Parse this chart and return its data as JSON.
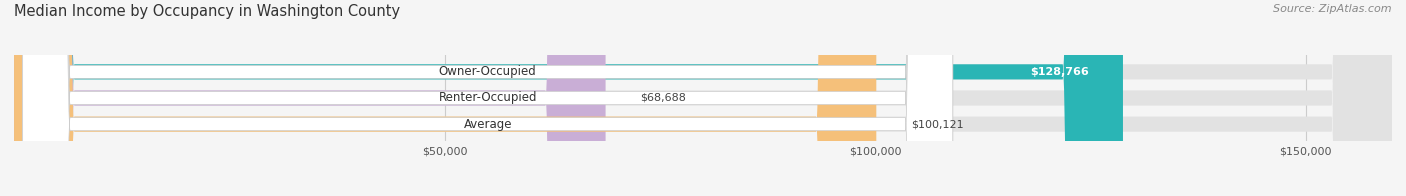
{
  "title": "Median Income by Occupancy in Washington County",
  "source": "Source: ZipAtlas.com",
  "categories": [
    "Owner-Occupied",
    "Renter-Occupied",
    "Average"
  ],
  "values": [
    128766,
    68688,
    100121
  ],
  "bar_colors": [
    "#2ab5b5",
    "#c9aed6",
    "#f5c07a"
  ],
  "value_labels": [
    "$128,766",
    "$68,688",
    "$100,121"
  ],
  "xlim": [
    0,
    160000
  ],
  "xticks": [
    50000,
    100000,
    150000
  ],
  "xtick_labels": [
    "$50,000",
    "$100,000",
    "$150,000"
  ],
  "background_color": "#f5f5f5",
  "bar_bg_color": "#e2e2e2",
  "title_fontsize": 10.5,
  "source_fontsize": 8,
  "bar_height": 0.58,
  "figsize": [
    14.06,
    1.96
  ],
  "dpi": 100
}
